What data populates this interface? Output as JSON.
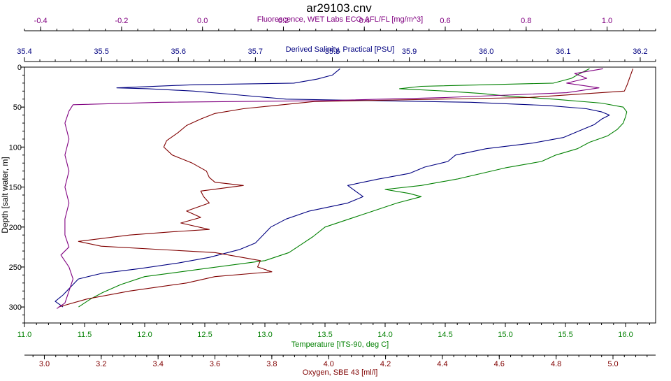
{
  "chart_data": {
    "type": "line",
    "title": "ar29103.cnv",
    "y_axis": {
      "label": "Depth [salt water, m]",
      "range": [
        0,
        320
      ],
      "ticks": [
        0,
        50,
        100,
        150,
        200,
        250,
        300
      ],
      "inverted": true
    },
    "x_axes": [
      {
        "id": "fluorescence",
        "label": "Fluorescence, WET Labs ECO-AFL/FL [mg/m^3]",
        "range": [
          -0.44,
          1.12
        ],
        "ticks": [
          -0.4,
          -0.2,
          0.0,
          0.2,
          0.4,
          0.6,
          0.8,
          1.0
        ],
        "tick_labels": [
          "-0.4",
          "-0.2",
          "0.0",
          "0.2",
          "0.4",
          "0.6",
          "0.8",
          "1.0"
        ],
        "position": "top",
        "color": "#800080"
      },
      {
        "id": "salinity",
        "label": "Derived Salinity, Practical [PSU]",
        "range": [
          35.4,
          36.22
        ],
        "ticks": [
          35.4,
          35.5,
          35.6,
          35.7,
          35.8,
          35.9,
          36.0,
          36.1,
          36.2
        ],
        "tick_labels": [
          "35.4",
          "35.5",
          "35.6",
          "35.7",
          "35.8",
          "35.9",
          "36.0",
          "36.1",
          "36.2"
        ],
        "position": "top",
        "color": "#000080"
      },
      {
        "id": "temperature",
        "label": "Temperature [ITS-90, deg C]",
        "range": [
          11.0,
          16.25
        ],
        "ticks": [
          11.0,
          11.5,
          12.0,
          12.5,
          13.0,
          13.5,
          14.0,
          14.5,
          15.0,
          15.5,
          16.0
        ],
        "tick_labels": [
          "11.0",
          "11.5",
          "12.0",
          "12.5",
          "13.0",
          "13.5",
          "14.0",
          "14.5",
          "15.0",
          "15.5",
          "16.0"
        ],
        "position": "bottom",
        "color": "#008000"
      },
      {
        "id": "oxygen",
        "label": "Oxygen, SBE 43 [ml/l]",
        "range": [
          2.93,
          5.15
        ],
        "ticks": [
          3.0,
          3.2,
          3.4,
          3.6,
          3.8,
          4.0,
          4.2,
          4.4,
          4.6,
          4.8,
          5.0
        ],
        "tick_labels": [
          "3.0",
          "3.2",
          "3.4",
          "3.6",
          "3.8",
          "4.0",
          "4.2",
          "4.4",
          "4.6",
          "4.8",
          "5.0"
        ],
        "position": "bottom",
        "color": "#800000"
      }
    ],
    "grid": false,
    "legend": "none",
    "series": [
      {
        "axis": "salinity",
        "color": "#000080",
        "points": [
          [
            35.81,
            2
          ],
          [
            35.8,
            10
          ],
          [
            35.78,
            15
          ],
          [
            35.75,
            20
          ],
          [
            35.62,
            22
          ],
          [
            35.52,
            26
          ],
          [
            35.56,
            27
          ],
          [
            35.62,
            30
          ],
          [
            35.68,
            35
          ],
          [
            35.74,
            40
          ],
          [
            35.98,
            44
          ],
          [
            36.08,
            48
          ],
          [
            36.13,
            52
          ],
          [
            36.15,
            56
          ],
          [
            36.16,
            60
          ],
          [
            36.15,
            65
          ],
          [
            36.14,
            72
          ],
          [
            36.12,
            80
          ],
          [
            36.1,
            88
          ],
          [
            36.06,
            95
          ],
          [
            36.0,
            102
          ],
          [
            35.96,
            110
          ],
          [
            35.95,
            118
          ],
          [
            35.92,
            125
          ],
          [
            35.9,
            133
          ],
          [
            35.86,
            140
          ],
          [
            35.82,
            148
          ],
          [
            35.83,
            155
          ],
          [
            35.84,
            162
          ],
          [
            35.82,
            170
          ],
          [
            35.77,
            180
          ],
          [
            35.74,
            190
          ],
          [
            35.72,
            200
          ],
          [
            35.71,
            210
          ],
          [
            35.7,
            220
          ],
          [
            35.68,
            228
          ],
          [
            35.64,
            238
          ],
          [
            35.6,
            245
          ],
          [
            35.55,
            252
          ],
          [
            35.5,
            258
          ],
          [
            35.47,
            265
          ],
          [
            35.46,
            275
          ],
          [
            35.45,
            285
          ],
          [
            35.44,
            293
          ],
          [
            35.45,
            300
          ]
        ]
      },
      {
        "axis": "temperature",
        "color": "#008000",
        "points": [
          [
            15.7,
            2
          ],
          [
            15.62,
            8
          ],
          [
            15.55,
            14
          ],
          [
            15.4,
            20
          ],
          [
            14.3,
            24
          ],
          [
            14.12,
            27
          ],
          [
            14.5,
            30
          ],
          [
            14.8,
            33
          ],
          [
            15.0,
            36
          ],
          [
            15.4,
            40
          ],
          [
            15.8,
            45
          ],
          [
            15.98,
            50
          ],
          [
            16.01,
            56
          ],
          [
            16.0,
            62
          ],
          [
            15.98,
            70
          ],
          [
            15.93,
            78
          ],
          [
            15.85,
            86
          ],
          [
            15.7,
            94
          ],
          [
            15.6,
            102
          ],
          [
            15.42,
            110
          ],
          [
            15.3,
            118
          ],
          [
            15.0,
            126
          ],
          [
            14.8,
            133
          ],
          [
            14.6,
            140
          ],
          [
            14.3,
            148
          ],
          [
            14.0,
            153
          ],
          [
            14.2,
            158
          ],
          [
            14.3,
            162
          ],
          [
            14.1,
            170
          ],
          [
            13.9,
            180
          ],
          [
            13.7,
            190
          ],
          [
            13.5,
            200
          ],
          [
            13.4,
            212
          ],
          [
            13.3,
            222
          ],
          [
            13.2,
            232
          ],
          [
            13.0,
            242
          ],
          [
            12.5,
            252
          ],
          [
            12.0,
            262
          ],
          [
            11.8,
            272
          ],
          [
            11.65,
            282
          ],
          [
            11.55,
            290
          ],
          [
            11.45,
            300
          ]
        ]
      },
      {
        "axis": "oxygen",
        "color": "#800000",
        "points": [
          [
            5.07,
            2
          ],
          [
            5.06,
            12
          ],
          [
            5.05,
            22
          ],
          [
            5.04,
            30
          ],
          [
            4.7,
            38
          ],
          [
            3.95,
            43
          ],
          [
            3.7,
            52
          ],
          [
            3.6,
            58
          ],
          [
            3.55,
            65
          ],
          [
            3.5,
            73
          ],
          [
            3.47,
            82
          ],
          [
            3.43,
            92
          ],
          [
            3.42,
            100
          ],
          [
            3.45,
            110
          ],
          [
            3.52,
            120
          ],
          [
            3.57,
            130
          ],
          [
            3.58,
            138
          ],
          [
            3.6,
            144
          ],
          [
            3.7,
            148
          ],
          [
            3.55,
            155
          ],
          [
            3.56,
            162
          ],
          [
            3.58,
            170
          ],
          [
            3.5,
            180
          ],
          [
            3.55,
            188
          ],
          [
            3.48,
            195
          ],
          [
            3.58,
            203
          ],
          [
            3.45,
            206
          ],
          [
            3.3,
            210
          ],
          [
            3.12,
            218
          ],
          [
            3.2,
            224
          ],
          [
            3.6,
            232
          ],
          [
            3.76,
            242
          ],
          [
            3.75,
            250
          ],
          [
            3.8,
            256
          ],
          [
            3.6,
            262
          ],
          [
            3.5,
            270
          ],
          [
            3.3,
            280
          ],
          [
            3.15,
            290
          ],
          [
            3.05,
            300
          ]
        ]
      },
      {
        "axis": "fluorescence",
        "color": "#800080",
        "points": [
          [
            0.99,
            2
          ],
          [
            0.92,
            8
          ],
          [
            0.95,
            14
          ],
          [
            0.9,
            20
          ],
          [
            0.98,
            26
          ],
          [
            0.9,
            32
          ],
          [
            0.6,
            38
          ],
          [
            0.3,
            42
          ],
          [
            -0.1,
            44
          ],
          [
            -0.32,
            47
          ],
          [
            -0.33,
            55
          ],
          [
            -0.34,
            70
          ],
          [
            -0.33,
            90
          ],
          [
            -0.34,
            110
          ],
          [
            -0.33,
            130
          ],
          [
            -0.34,
            150
          ],
          [
            -0.33,
            170
          ],
          [
            -0.34,
            190
          ],
          [
            -0.34,
            210
          ],
          [
            -0.33,
            225
          ],
          [
            -0.35,
            235
          ],
          [
            -0.33,
            250
          ],
          [
            -0.32,
            265
          ],
          [
            -0.33,
            280
          ],
          [
            -0.34,
            295
          ],
          [
            -0.36,
            302
          ]
        ]
      }
    ]
  }
}
